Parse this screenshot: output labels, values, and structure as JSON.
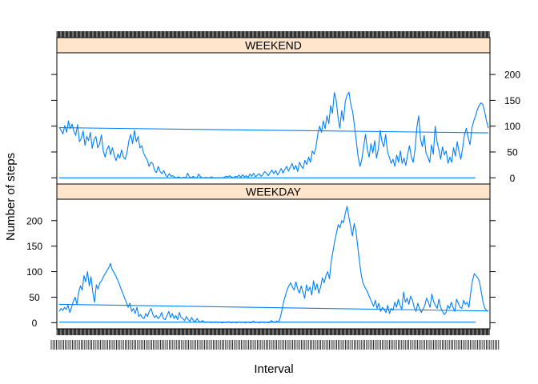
{
  "chart_data": {
    "type": "line",
    "xlabel": "Interval",
    "ylabel": "Number of steps",
    "x_tick_labels_note": "",
    "ylim": [
      -12,
      242
    ],
    "yticks": [
      0,
      50,
      100,
      150,
      200
    ],
    "colors": {
      "line": "#0080ff",
      "strip": "#ffe5cc",
      "frame": "#000000"
    },
    "panels": [
      {
        "strip": "WEEKEND",
        "y_axis_side": "right",
        "series": [
          {
            "kind": "activity",
            "values": [
              98,
              92,
              85,
              101,
              88,
              110,
              95,
              104,
              90,
              82,
              103,
              70,
              76,
              91,
              63,
              80,
              72,
              88,
              57,
              74,
              80,
              58,
              66,
              83,
              52,
              40,
              55,
              62,
              45,
              58,
              44,
              33,
              46,
              38,
              54,
              40,
              36,
              50,
              72,
              84,
              66,
              92,
              70,
              80,
              58,
              62,
              48,
              40,
              35,
              22,
              30,
              28,
              14,
              10,
              22,
              12,
              8,
              14,
              5,
              2,
              8,
              3,
              4,
              1,
              0,
              2,
              0,
              0,
              1,
              0,
              9,
              2,
              0,
              3,
              0,
              0,
              7,
              2,
              0,
              0,
              1,
              0,
              0,
              2,
              0,
              0,
              0,
              0,
              0,
              0,
              1,
              3,
              2,
              4,
              1,
              0,
              3,
              2,
              5,
              1,
              6,
              2,
              4,
              1,
              7,
              3,
              9,
              2,
              5,
              8,
              3,
              6,
              12,
              9,
              4,
              10,
              15,
              8,
              14,
              6,
              11,
              18,
              9,
              16,
              22,
              13,
              20,
              28,
              16,
              24,
              12,
              30,
              22,
              18,
              34,
              26,
              40,
              30,
              52,
              46,
              60,
              85,
              100,
              88,
              110,
              95,
              120,
              105,
              140,
              125,
              165,
              150,
              118,
              96,
              130,
              110,
              148,
              160,
              166,
              142,
              128,
              100,
              70,
              40,
              22,
              35,
              60,
              84,
              55,
              40,
              66,
              48,
              72,
              38,
              56,
              92,
              70,
              60,
              84,
              50,
              40,
              28,
              36,
              22,
              44,
              30,
              52,
              28,
              38,
              24,
              46,
              62,
              40,
              30,
              54,
              98,
              120,
              76,
              60,
              82,
              48,
              40,
              30,
              64,
              46,
              100,
              70,
              54,
              36,
              60,
              44,
              52,
              28,
              40,
              30,
              58,
              42,
              70,
              50,
              36,
              58,
              84,
              96,
              78,
              64,
              96,
              110,
              120,
              132,
              140,
              145,
              142,
              128,
              110,
              96
            ]
          },
          {
            "kind": "trend",
            "values": [
              97,
              87
            ]
          },
          {
            "kind": "baseline",
            "values": [
              0,
              0
            ]
          }
        ]
      },
      {
        "strip": "WEEKDAY",
        "y_axis_side": "left",
        "series": [
          {
            "kind": "activity",
            "values": [
              22,
              28,
              24,
              30,
              26,
              34,
              20,
              30,
              42,
              50,
              36,
              60,
              72,
              64,
              92,
              80,
              100,
              72,
              90,
              60,
              40,
              74,
              66,
              78,
              82,
              90,
              96,
              102,
              108,
              116,
              104,
              98,
              92,
              84,
              76,
              66,
              58,
              48,
              40,
              30,
              38,
              22,
              28,
              18,
              30,
              12,
              16,
              10,
              8,
              18,
              12,
              22,
              28,
              16,
              10,
              14,
              8,
              12,
              20,
              8,
              6,
              14,
              22,
              10,
              18,
              8,
              14,
              6,
              20,
              10,
              8,
              4,
              12,
              6,
              3,
              10,
              4,
              2,
              8,
              3,
              1,
              4,
              2,
              0,
              2,
              1,
              0,
              1,
              0,
              2,
              0,
              1,
              0,
              0,
              1,
              0,
              2,
              0,
              0,
              1,
              0,
              0,
              2,
              0,
              1,
              0,
              0,
              1,
              0,
              0,
              3,
              0,
              1,
              0,
              0,
              2,
              0,
              1,
              0,
              0,
              4,
              2,
              0,
              3,
              1,
              8,
              22,
              40,
              52,
              64,
              72,
              78,
              70,
              64,
              80,
              66,
              58,
              72,
              60,
              48,
              74,
              62,
              70,
              54,
              82,
              64,
              76,
              58,
              70,
              88,
              78,
              92,
              100,
              86,
              120,
              140,
              160,
              176,
              192,
              186,
              200,
              196,
              214,
              228,
              208,
              188,
              170,
              194,
              180,
              150,
              120,
              94,
              78,
              70,
              64,
              56,
              48,
              40,
              32,
              44,
              28,
              38,
              22,
              30,
              26,
              20,
              34,
              18,
              28,
              24,
              40,
              30,
              46,
              34,
              26,
              60,
              40,
              48,
              36,
              52,
              44,
              30,
              22,
              38,
              28,
              20,
              26,
              34,
              48,
              40,
              30,
              56,
              42,
              34,
              28,
              46,
              30,
              22,
              16,
              20,
              34,
              28,
              40,
              30,
              22,
              46,
              38,
              30,
              28,
              44,
              36,
              40,
              30,
              58,
              82,
              96,
              92,
              88,
              80,
              60,
              40,
              28,
              24,
              22
            ]
          },
          {
            "kind": "trend",
            "values": [
              36,
              23
            ]
          },
          {
            "kind": "baseline",
            "values": [
              1,
              1
            ]
          }
        ]
      }
    ]
  }
}
